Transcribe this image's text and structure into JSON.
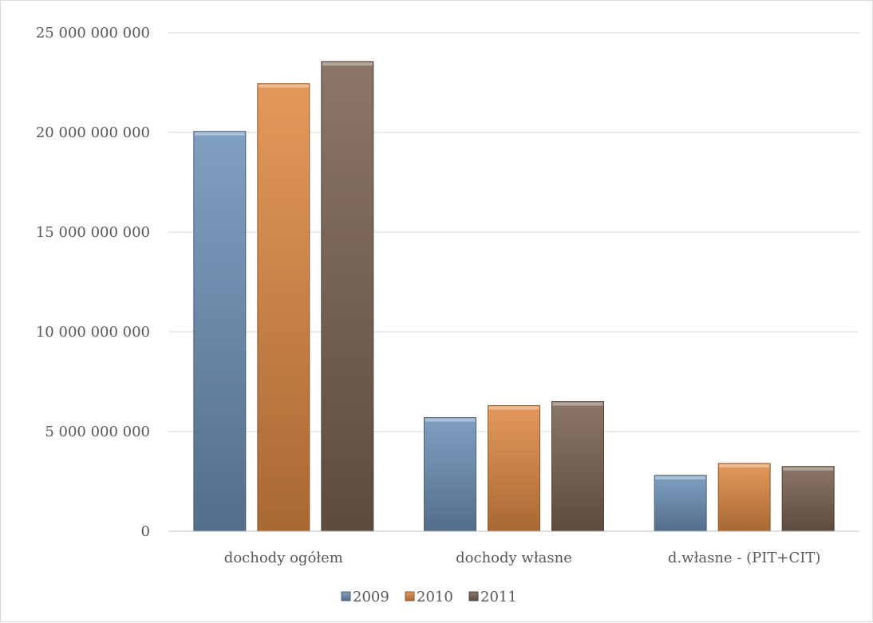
{
  "chart_data": {
    "type": "bar",
    "categories": [
      "dochody ogółem",
      "dochody własne",
      "d.własne - (PIT+CIT)"
    ],
    "series": [
      {
        "name": "2009",
        "values": [
          20050000000,
          5700000000,
          2800000000
        ],
        "color": "#6f93b8"
      },
      {
        "name": "2010",
        "values": [
          22450000000,
          6300000000,
          3400000000
        ],
        "color": "#e08b45"
      },
      {
        "name": "2011",
        "values": [
          23550000000,
          6500000000,
          3250000000
        ],
        "color": "#7b6454"
      }
    ],
    "yticks": [
      0,
      5000000000,
      10000000000,
      15000000000,
      20000000000,
      25000000000
    ],
    "ytick_labels": [
      "0",
      "5 000 000 000",
      "10 000 000 000",
      "15 000 000 000",
      "20 000 000 000",
      "25 000 000 000"
    ],
    "ylim": [
      0,
      25000000000
    ],
    "title": "",
    "xlabel": "",
    "ylabel": "",
    "grid": true,
    "legend_position": "bottom"
  }
}
